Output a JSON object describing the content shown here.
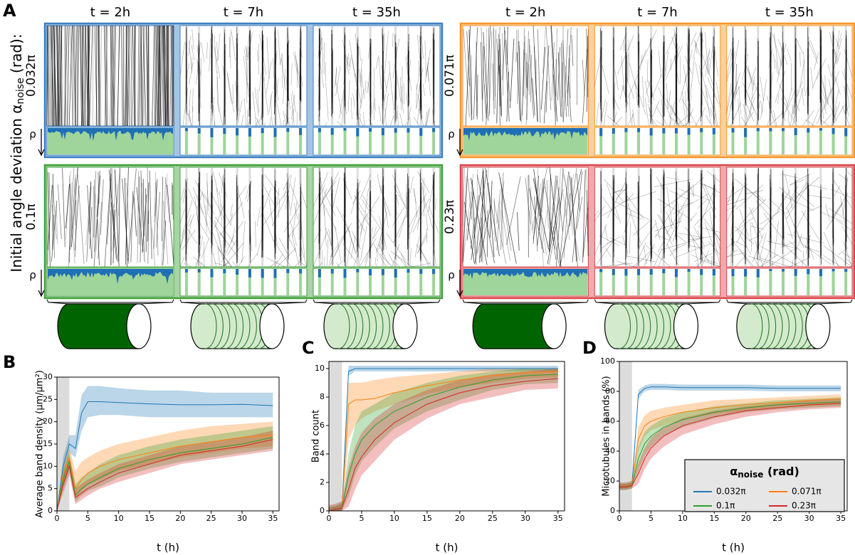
{
  "panel_a": {
    "label": "A",
    "axis_label": {
      "text": "Initial angle deviation α",
      "sub": "noise",
      "tail": " (rad):"
    },
    "column_titles": [
      [
        "t = 2h",
        "t = 7h",
        "t = 35h"
      ],
      [
        "t = 2h",
        "t = 7h",
        "t = 35h"
      ]
    ],
    "groups": [
      {
        "label": "0.032π",
        "rho": "ρ",
        "color": "#3a7fc1",
        "noise": 0.03
      },
      {
        "label": "0.071π",
        "rho": "ρ",
        "color": "#f5962a",
        "noise": 0.07
      },
      {
        "label": "0.1π",
        "rho": "ρ",
        "color": "#3f9f3a",
        "noise": 0.1
      },
      {
        "label": "0.23π",
        "rho": "ρ",
        "color": "#d8454a",
        "noise": 0.23
      }
    ]
  },
  "chart_data": [
    {
      "type": "line",
      "panel_label": "B",
      "ylabel": "Average band density (μm/μm²)",
      "xlabel": "t (h)",
      "x": [
        0,
        1,
        2,
        3,
        4,
        5,
        7,
        10,
        15,
        20,
        25,
        30,
        35
      ],
      "xlim": [
        0,
        36
      ],
      "xticks": [
        0,
        5,
        10,
        15,
        20,
        25,
        30,
        35
      ],
      "ylim": [
        0,
        30
      ],
      "yticks": [
        0,
        5,
        10,
        15,
        20,
        25,
        30
      ],
      "shaded_x": [
        0,
        2
      ],
      "series": [
        {
          "color": "#1f77b4",
          "values": [
            0,
            10,
            15,
            14,
            22,
            24.5,
            24.5,
            24.3,
            24,
            23.8,
            23.8,
            23.9,
            23.6
          ],
          "lower": [
            0,
            7,
            13,
            12,
            18,
            21,
            21.5,
            21.5,
            21,
            21,
            21,
            21,
            21
          ],
          "upper": [
            0,
            12,
            17,
            17,
            26,
            28,
            28,
            27.5,
            27,
            27,
            26.5,
            26.5,
            26.5
          ]
        },
        {
          "color": "#ff7f0e",
          "values": [
            0,
            8,
            12,
            5,
            7,
            8.5,
            10,
            11.5,
            13,
            14.5,
            15.5,
            16.5,
            17
          ],
          "lower": [
            0,
            5,
            10,
            3,
            4.5,
            6,
            7,
            9,
            10.5,
            12,
            13,
            14,
            14.5
          ],
          "upper": [
            0,
            10,
            14,
            9,
            11,
            12,
            13.5,
            15,
            16.5,
            18,
            19,
            19.5,
            20
          ]
        },
        {
          "color": "#2ca02c",
          "values": [
            0,
            7,
            11,
            3.5,
            5,
            6,
            7.5,
            9.5,
            11.5,
            13,
            14,
            15,
            16.5
          ],
          "lower": [
            0,
            5,
            9,
            2,
            3.5,
            4.5,
            5.5,
            7.5,
            9.5,
            11,
            12,
            13,
            14
          ],
          "upper": [
            0,
            9,
            13,
            6,
            7.5,
            8.5,
            10.5,
            12.5,
            14.5,
            16,
            17,
            18,
            19
          ]
        },
        {
          "color": "#d62728",
          "values": [
            0,
            6,
            10,
            3,
            4,
            5,
            6.5,
            8.5,
            10.5,
            12.5,
            13.5,
            14.5,
            16
          ],
          "lower": [
            0,
            4,
            8,
            1.5,
            2.5,
            3.5,
            5,
            6.5,
            8.5,
            10.5,
            11.5,
            12.5,
            13.5
          ],
          "upper": [
            0,
            8,
            12,
            5,
            6,
            7,
            8.5,
            10.5,
            12.5,
            14.5,
            15.5,
            16.5,
            18
          ]
        }
      ]
    },
    {
      "type": "line",
      "panel_label": "C",
      "ylabel": "Band count",
      "xlabel": "t (h)",
      "x": [
        0,
        1,
        2,
        3,
        4,
        5,
        7,
        10,
        15,
        20,
        25,
        30,
        35
      ],
      "xlim": [
        0,
        36
      ],
      "xticks": [
        0,
        5,
        10,
        15,
        20,
        25,
        30,
        35
      ],
      "ylim": [
        0,
        10.5
      ],
      "yticks": [
        0,
        2,
        4,
        6,
        8,
        10
      ],
      "shaded_x": [
        0,
        2
      ],
      "series": [
        {
          "color": "#1f77b4",
          "values": [
            0,
            0.1,
            0.2,
            9.8,
            10,
            10,
            10,
            10,
            10,
            10,
            10,
            10,
            10
          ],
          "lower": [
            0,
            0,
            0,
            9.5,
            9.8,
            9.8,
            9.8,
            9.8,
            9.8,
            9.8,
            9.8,
            9.8,
            9.8
          ],
          "upper": [
            0.2,
            0.3,
            0.5,
            10.2,
            10.2,
            10.2,
            10.2,
            10.2,
            10.2,
            10.2,
            10.2,
            10.2,
            10.2
          ]
        },
        {
          "color": "#ff7f0e",
          "values": [
            0,
            0.1,
            0.2,
            7.5,
            7.8,
            7.8,
            7.9,
            8.3,
            8.8,
            9.2,
            9.5,
            9.7,
            9.8
          ],
          "lower": [
            0,
            0,
            0,
            5,
            6,
            6.5,
            7,
            7.5,
            8.2,
            8.7,
            9,
            9.3,
            9.4
          ],
          "upper": [
            0.2,
            0.3,
            0.5,
            9,
            9,
            9,
            9.2,
            9.4,
            9.6,
            9.8,
            10,
            10,
            10
          ]
        },
        {
          "color": "#2ca02c",
          "values": [
            0,
            0.1,
            0.2,
            2.5,
            4,
            5,
            6,
            7,
            8,
            8.7,
            9.2,
            9.5,
            9.6
          ],
          "lower": [
            0,
            0,
            0,
            1,
            2.5,
            3.5,
            4.5,
            5.8,
            7,
            7.8,
            8.5,
            8.9,
            9
          ],
          "upper": [
            0.3,
            0.4,
            0.6,
            4,
            6,
            7,
            7.5,
            8.3,
            9,
            9.5,
            9.8,
            10,
            10
          ]
        },
        {
          "color": "#d62728",
          "values": [
            0,
            0.1,
            0.2,
            1.5,
            3,
            3.8,
            5,
            6.2,
            7.5,
            8.3,
            8.8,
            9.1,
            9.3
          ],
          "lower": [
            0,
            0,
            0,
            0.3,
            1.5,
            2.5,
            3.5,
            5,
            6.5,
            7.5,
            8,
            8.5,
            8.6
          ],
          "upper": [
            0.4,
            0.5,
            0.7,
            3,
            4.5,
            5.5,
            6.5,
            7.5,
            8.5,
            9.2,
            9.6,
            9.8,
            10
          ]
        }
      ]
    },
    {
      "type": "line",
      "panel_label": "D",
      "ylabel": "Microtubules in bands (%)",
      "xlabel": "t (h)",
      "x": [
        0,
        1,
        2,
        3,
        4,
        5,
        7,
        10,
        15,
        20,
        25,
        30,
        35
      ],
      "xlim": [
        0,
        36
      ],
      "xticks": [
        0,
        5,
        10,
        15,
        20,
        25,
        30,
        35
      ],
      "ylim": [
        0,
        100
      ],
      "yticks": [
        0,
        20,
        40,
        60,
        80,
        100
      ],
      "shaded_x": [
        0,
        2
      ],
      "legend": {
        "title": "α",
        "title_sub": "noise",
        "title_tail": " (rad)",
        "position": "lower right"
      },
      "series": [
        {
          "name": "0.032π",
          "color": "#1f77b4",
          "values": [
            17,
            17,
            18,
            78,
            82,
            83,
            83,
            82.5,
            82.5,
            82.5,
            82,
            82,
            82
          ],
          "lower": [
            15,
            15,
            16,
            75,
            80,
            81,
            81,
            80.5,
            80.5,
            80.5,
            80,
            80,
            80
          ],
          "upper": [
            19,
            19,
            20,
            81,
            84,
            85,
            85,
            84.5,
            84.5,
            84.5,
            84,
            84,
            84
          ]
        },
        {
          "name": "0.071π",
          "color": "#ff7f0e",
          "values": [
            17,
            17,
            18,
            48,
            57,
            60,
            63,
            66,
            69,
            71,
            72.5,
            74,
            75
          ],
          "lower": [
            15,
            15,
            16,
            40,
            50,
            54,
            57,
            61,
            65,
            67,
            69,
            70,
            71
          ],
          "upper": [
            19,
            19,
            20,
            56,
            64,
            67,
            69,
            71,
            74,
            75,
            76,
            77,
            78
          ]
        },
        {
          "name": "0.1π",
          "color": "#2ca02c",
          "values": [
            16,
            16,
            17,
            35,
            45,
            50,
            56,
            61,
            66,
            69,
            71,
            72,
            73
          ],
          "lower": [
            14,
            14,
            15,
            27,
            37,
            43,
            50,
            56,
            62,
            66,
            68,
            69,
            70
          ],
          "upper": [
            18,
            18,
            19,
            43,
            53,
            57,
            62,
            66,
            70,
            72,
            74,
            75,
            76
          ]
        },
        {
          "name": "0.23π",
          "color": "#d62728",
          "values": [
            16,
            16,
            17,
            25,
            35,
            42,
            50,
            57,
            63,
            67,
            69,
            71,
            72
          ],
          "lower": [
            14,
            14,
            15,
            18,
            28,
            35,
            43,
            51,
            58,
            63,
            66,
            68,
            69
          ],
          "upper": [
            18,
            18,
            19,
            32,
            42,
            49,
            56,
            62,
            67,
            70,
            72,
            74,
            75
          ]
        }
      ]
    }
  ]
}
